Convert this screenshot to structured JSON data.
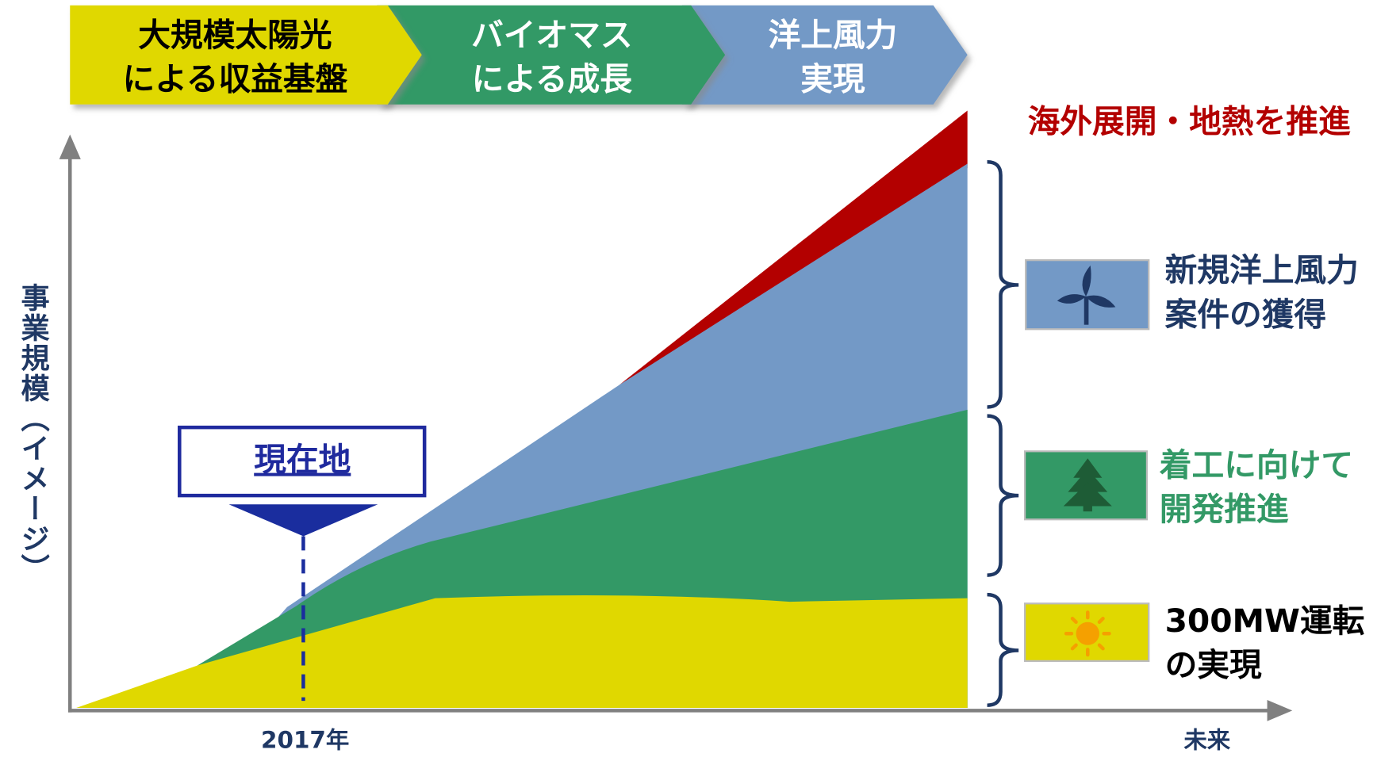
{
  "phases": [
    {
      "lines": [
        "大規模太陽光",
        "による収益基盤"
      ]
    },
    {
      "lines": [
        "バイオマス",
        "による成長"
      ]
    },
    {
      "lines": [
        "洋上風力",
        "実現"
      ]
    }
  ],
  "y_axis_label": "事業規模（イメージ）",
  "x_axis": {
    "start": "2017年",
    "end": "未来"
  },
  "marker": "現在地",
  "annotation": "海外展開・地熱を推進",
  "legend": [
    {
      "lines": [
        "新規洋上風力",
        "案件の獲得"
      ]
    },
    {
      "lines": [
        "着工に向けて",
        "開発推進"
      ]
    },
    {
      "lines": [
        "300MW運転",
        "の実現"
      ]
    }
  ]
}
